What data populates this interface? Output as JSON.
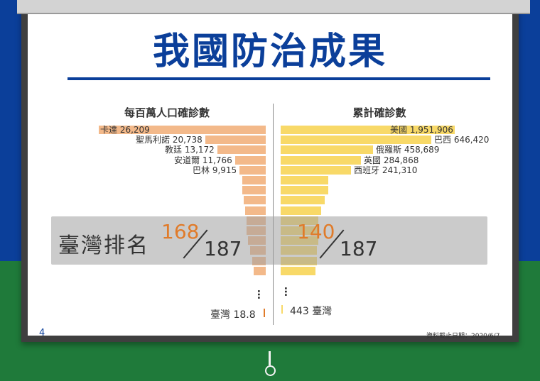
{
  "title": "我國防治成果",
  "page_number": "4",
  "cutoff_note": "資料截止日期：2020/6/7",
  "overlay": {
    "label": "臺灣排名",
    "left_rank": "168",
    "left_total": "187",
    "right_rank": "140",
    "right_total": "187"
  },
  "colors": {
    "left_bar": "#f3b98a",
    "right_bar": "#f8d968",
    "accent": "#e07b2a",
    "brand": "#0b3f9a"
  },
  "chart_data": [
    {
      "type": "bar",
      "title": "每百萬人口確診數",
      "labeled": [
        {
          "label": "卡達",
          "value": "26,209"
        },
        {
          "label": "聖馬利諾",
          "value": "20,738"
        },
        {
          "label": "教廷",
          "value": "13,172"
        },
        {
          "label": "安道爾",
          "value": "11,766"
        },
        {
          "label": "巴林",
          "value": "9,915"
        }
      ],
      "taiwan": {
        "label": "臺灣",
        "value": "18.8"
      }
    },
    {
      "type": "bar",
      "title": "累計確診數",
      "labeled": [
        {
          "label": "美國",
          "value": "1,951,906"
        },
        {
          "label": "巴西",
          "value": "646,420"
        },
        {
          "label": "俄羅斯",
          "value": "458,689"
        },
        {
          "label": "英國",
          "value": "284,868"
        },
        {
          "label": "西班牙",
          "value": "241,310"
        }
      ],
      "taiwan": {
        "label": "臺灣",
        "value": "443"
      }
    }
  ]
}
